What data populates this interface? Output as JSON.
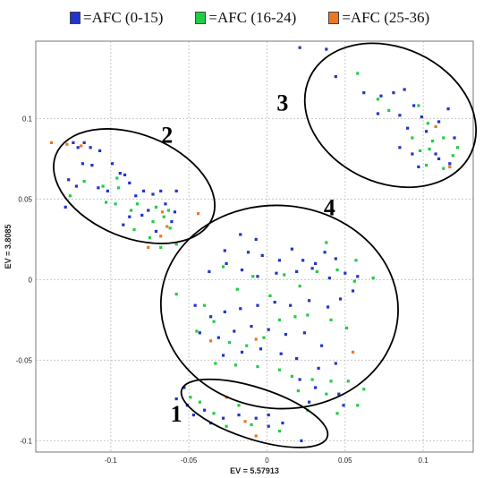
{
  "chart_data": {
    "type": "scatter",
    "xlabel": "EV = 5.57913",
    "ylabel": "EV = 3.8085",
    "xlim": [
      -0.148,
      0.132
    ],
    "ylim": [
      -0.107,
      0.148
    ],
    "x_ticks": [
      -0.1,
      -0.05,
      0,
      0.05,
      0.1
    ],
    "x_tick_labels": [
      "-0.1",
      "-0.05",
      "0",
      "0.05",
      "0.1"
    ],
    "y_ticks": [
      -0.1,
      -0.05,
      0,
      0.05,
      0.1
    ],
    "y_tick_labels": [
      "-0.1",
      "-0.05",
      "0",
      "0.05",
      "0.1"
    ],
    "grid": true,
    "legend": [
      {
        "label": "=AFC (0-15)",
        "color": "#2233cc"
      },
      {
        "label": "=AFC (16-24)",
        "color": "#22cc44"
      },
      {
        "label": "=AFC (25-36)",
        "color": "#ee7722"
      }
    ],
    "clusters": [
      {
        "label": "1",
        "center": [
          -0.008,
          -0.083
        ],
        "rx": 0.049,
        "ry": 0.016,
        "rotation_deg": 18,
        "label_pos": [
          -0.058,
          -0.088
        ]
      },
      {
        "label": "2",
        "center": [
          -0.085,
          0.058
        ],
        "rx": 0.054,
        "ry": 0.032,
        "rotation_deg": 22,
        "label_pos": [
          -0.064,
          0.085
        ]
      },
      {
        "label": "3",
        "center": [
          0.079,
          0.102
        ],
        "rx": 0.057,
        "ry": 0.042,
        "rotation_deg": 25,
        "label_pos": [
          0.01,
          0.105
        ]
      },
      {
        "label": "4",
        "center": [
          0.008,
          -0.017
        ],
        "rx": 0.076,
        "ry": 0.063,
        "rotation_deg": 5,
        "label_pos": [
          0.04,
          0.04
        ]
      }
    ],
    "series": [
      {
        "name": "=AFC (0-15)",
        "color": "#2233cc",
        "points": [
          [
            -0.124,
            0.085
          ],
          [
            -0.121,
            0.082
          ],
          [
            -0.117,
            0.085
          ],
          [
            -0.113,
            0.082
          ],
          [
            -0.107,
            0.08
          ],
          [
            -0.118,
            0.072
          ],
          [
            -0.112,
            0.071
          ],
          [
            -0.127,
            0.062
          ],
          [
            -0.122,
            0.058
          ],
          [
            -0.099,
            0.072
          ],
          [
            -0.094,
            0.066
          ],
          [
            -0.091,
            0.065
          ],
          [
            -0.108,
            0.057
          ],
          [
            -0.102,
            0.055
          ],
          [
            -0.088,
            0.06
          ],
          [
            -0.084,
            0.052
          ],
          [
            -0.079,
            0.055
          ],
          [
            -0.073,
            0.053
          ],
          [
            -0.068,
            0.055
          ],
          [
            -0.058,
            0.055
          ],
          [
            -0.065,
            0.047
          ],
          [
            -0.076,
            0.043
          ],
          [
            -0.059,
            0.042
          ],
          [
            -0.129,
            0.045
          ],
          [
            -0.092,
            0.034
          ],
          [
            -0.071,
            0.03
          ],
          [
            -0.061,
            0.036
          ],
          [
            -0.088,
            0.039
          ],
          [
            -0.08,
            0.04
          ],
          [
            0.021,
            0.144
          ],
          [
            0.038,
            0.143
          ],
          [
            0.044,
            0.126
          ],
          [
            0.062,
            0.116
          ],
          [
            0.073,
            0.114
          ],
          [
            0.081,
            0.116
          ],
          [
            0.088,
            0.118
          ],
          [
            0.071,
            0.103
          ],
          [
            0.085,
            0.102
          ],
          [
            0.094,
            0.108
          ],
          [
            0.099,
            0.101
          ],
          [
            0.09,
            0.094
          ],
          [
            0.102,
            0.092
          ],
          [
            0.11,
            0.098
          ],
          [
            0.116,
            0.106
          ],
          [
            0.12,
            0.088
          ],
          [
            0.085,
            0.082
          ],
          [
            0.093,
            0.078
          ],
          [
            0.108,
            0.078
          ],
          [
            0.097,
            0.07
          ],
          [
            0.117,
            0.072
          ],
          [
            0.11,
            0.075
          ],
          [
            -0.027,
            0.018
          ],
          [
            -0.017,
            0.028
          ],
          [
            -0.007,
            0.025
          ],
          [
            -0.012,
            0.017
          ],
          [
            -0.003,
            0.015
          ],
          [
            0.008,
            0.012
          ],
          [
            0.016,
            0.019
          ],
          [
            0.023,
            0.012
          ],
          [
            0.031,
            0.01
          ],
          [
            0.037,
            0.017
          ],
          [
            0.044,
            0.013
          ],
          [
            -0.037,
            0.005
          ],
          [
            -0.026,
            0.01
          ],
          [
            -0.016,
            0.006
          ],
          [
            -0.006,
            0.002
          ],
          [
            0.006,
            0.004
          ],
          [
            0.019,
            0.005
          ],
          [
            0.029,
            0.007
          ],
          [
            0.04,
            0.001
          ],
          [
            0.05,
            0.004
          ],
          [
            0.058,
            0.002
          ],
          [
            -0.046,
            -0.016
          ],
          [
            -0.036,
            -0.023
          ],
          [
            -0.027,
            -0.02
          ],
          [
            -0.017,
            -0.018
          ],
          [
            -0.006,
            -0.016
          ],
          [
            0.005,
            -0.014
          ],
          [
            0.015,
            -0.016
          ],
          [
            0.027,
            -0.013
          ],
          [
            0.039,
            -0.017
          ],
          [
            0.047,
            -0.012
          ],
          [
            0.055,
            -0.007
          ],
          [
            -0.043,
            -0.033
          ],
          [
            -0.031,
            -0.036
          ],
          [
            -0.021,
            -0.032
          ],
          [
            -0.01,
            -0.029
          ],
          [
            0.001,
            -0.031
          ],
          [
            0.012,
            -0.034
          ],
          [
            0.024,
            -0.033
          ],
          [
            0.035,
            -0.041
          ],
          [
            -0.028,
            -0.047
          ],
          [
            -0.016,
            -0.045
          ],
          [
            -0.004,
            -0.043
          ],
          [
            0.009,
            -0.046
          ],
          [
            0.019,
            -0.049
          ],
          [
            0.033,
            -0.055
          ],
          [
            0.044,
            -0.052
          ],
          [
            0.021,
            -0.062
          ],
          [
            0.031,
            -0.067
          ],
          [
            0.046,
            -0.071
          ],
          [
            0.027,
            -0.076
          ],
          [
            0.049,
            -0.078
          ],
          [
            -0.058,
            -0.074
          ],
          [
            -0.051,
            -0.078
          ],
          [
            -0.047,
            -0.084
          ],
          [
            -0.04,
            -0.081
          ],
          [
            -0.036,
            -0.089
          ],
          [
            -0.028,
            -0.086
          ],
          [
            -0.018,
            -0.084
          ],
          [
            -0.007,
            -0.086
          ],
          [
            0.001,
            -0.091
          ],
          [
            0.01,
            -0.089
          ],
          [
            0.022,
            -0.1
          ],
          [
            0.001,
            -0.084
          ],
          [
            -0.053,
            -0.067
          ]
        ]
      },
      {
        "name": "=AFC (16-24)",
        "color": "#22cc44",
        "points": [
          [
            -0.126,
            0.052
          ],
          [
            -0.117,
            0.061
          ],
          [
            -0.105,
            0.058
          ],
          [
            -0.103,
            0.048
          ],
          [
            -0.096,
            0.063
          ],
          [
            -0.095,
            0.057
          ],
          [
            -0.087,
            0.043
          ],
          [
            -0.083,
            0.047
          ],
          [
            -0.071,
            0.045
          ],
          [
            -0.063,
            0.043
          ],
          [
            -0.073,
            0.036
          ],
          [
            -0.066,
            0.039
          ],
          [
            -0.075,
            0.026
          ],
          [
            -0.062,
            0.032
          ],
          [
            -0.068,
            0.02
          ],
          [
            -0.058,
            0.022
          ],
          [
            -0.097,
            0.047
          ],
          [
            -0.085,
            0.031
          ],
          [
            0.058,
            0.128
          ],
          [
            0.071,
            0.112
          ],
          [
            0.078,
            0.105
          ],
          [
            0.097,
            0.108
          ],
          [
            0.103,
            0.097
          ],
          [
            0.106,
            0.086
          ],
          [
            0.098,
            0.08
          ],
          [
            0.104,
            0.081
          ],
          [
            0.113,
            0.088
          ],
          [
            0.122,
            0.082
          ],
          [
            0.119,
            0.077
          ],
          [
            0.102,
            0.071
          ],
          [
            0.113,
            0.069
          ],
          [
            0.093,
            0.088
          ],
          [
            -0.058,
            -0.009
          ],
          [
            -0.04,
            -0.016
          ],
          [
            -0.028,
            0.008
          ],
          [
            -0.019,
            -0.006
          ],
          [
            -0.009,
            0.002
          ],
          [
            0.002,
            -0.01
          ],
          [
            0.011,
            0.003
          ],
          [
            0.021,
            -0.004
          ],
          [
            0.032,
            0.005
          ],
          [
            0.045,
            0.006
          ],
          [
            0.056,
            -0.001
          ],
          [
            -0.045,
            -0.032
          ],
          [
            -0.034,
            -0.026
          ],
          [
            -0.024,
            -0.039
          ],
          [
            -0.013,
            -0.041
          ],
          [
            -0.002,
            -0.036
          ],
          [
            0.008,
            -0.025
          ],
          [
            0.018,
            -0.023
          ],
          [
            0.026,
            -0.022
          ],
          [
            0.041,
            -0.025
          ],
          [
            0.051,
            -0.03
          ],
          [
            -0.033,
            -0.052
          ],
          [
            -0.02,
            -0.053
          ],
          [
            -0.006,
            -0.054
          ],
          [
            0.008,
            -0.056
          ],
          [
            0.016,
            -0.06
          ],
          [
            0.029,
            -0.062
          ],
          [
            0.041,
            -0.063
          ],
          [
            0.052,
            -0.063
          ],
          [
            0.062,
            -0.068
          ],
          [
            0.038,
            -0.071
          ],
          [
            0.02,
            -0.069
          ],
          [
            0.058,
            -0.078
          ],
          [
            0.026,
            -0.081
          ],
          [
            0.045,
            -0.083
          ],
          [
            0.068,
            0.001
          ],
          [
            0.038,
            0.023
          ],
          [
            0.057,
            0.012
          ],
          [
            -0.043,
            -0.076
          ],
          [
            -0.034,
            -0.083
          ],
          [
            -0.026,
            -0.091
          ],
          [
            -0.01,
            -0.09
          ],
          [
            0.008,
            -0.094
          ],
          [
            -0.018,
            -0.078
          ],
          [
            -0.049,
            -0.073
          ]
        ]
      },
      {
        "name": "=AFC (25-36)",
        "color": "#ee7722",
        "points": [
          [
            -0.138,
            0.085
          ],
          [
            -0.128,
            0.084
          ],
          [
            -0.119,
            0.083
          ],
          [
            -0.067,
            0.042
          ],
          [
            -0.064,
            0.033
          ],
          [
            -0.068,
            0.027
          ],
          [
            -0.044,
            0.041
          ],
          [
            -0.076,
            0.02
          ],
          [
            0.108,
            0.095
          ],
          [
            0.117,
            0.07
          ],
          [
            -0.036,
            -0.038
          ],
          [
            -0.007,
            -0.037
          ],
          [
            0.055,
            -0.045
          ],
          [
            -0.026,
            -0.073
          ],
          [
            -0.014,
            -0.088
          ],
          [
            -0.007,
            -0.097
          ]
        ]
      }
    ]
  }
}
